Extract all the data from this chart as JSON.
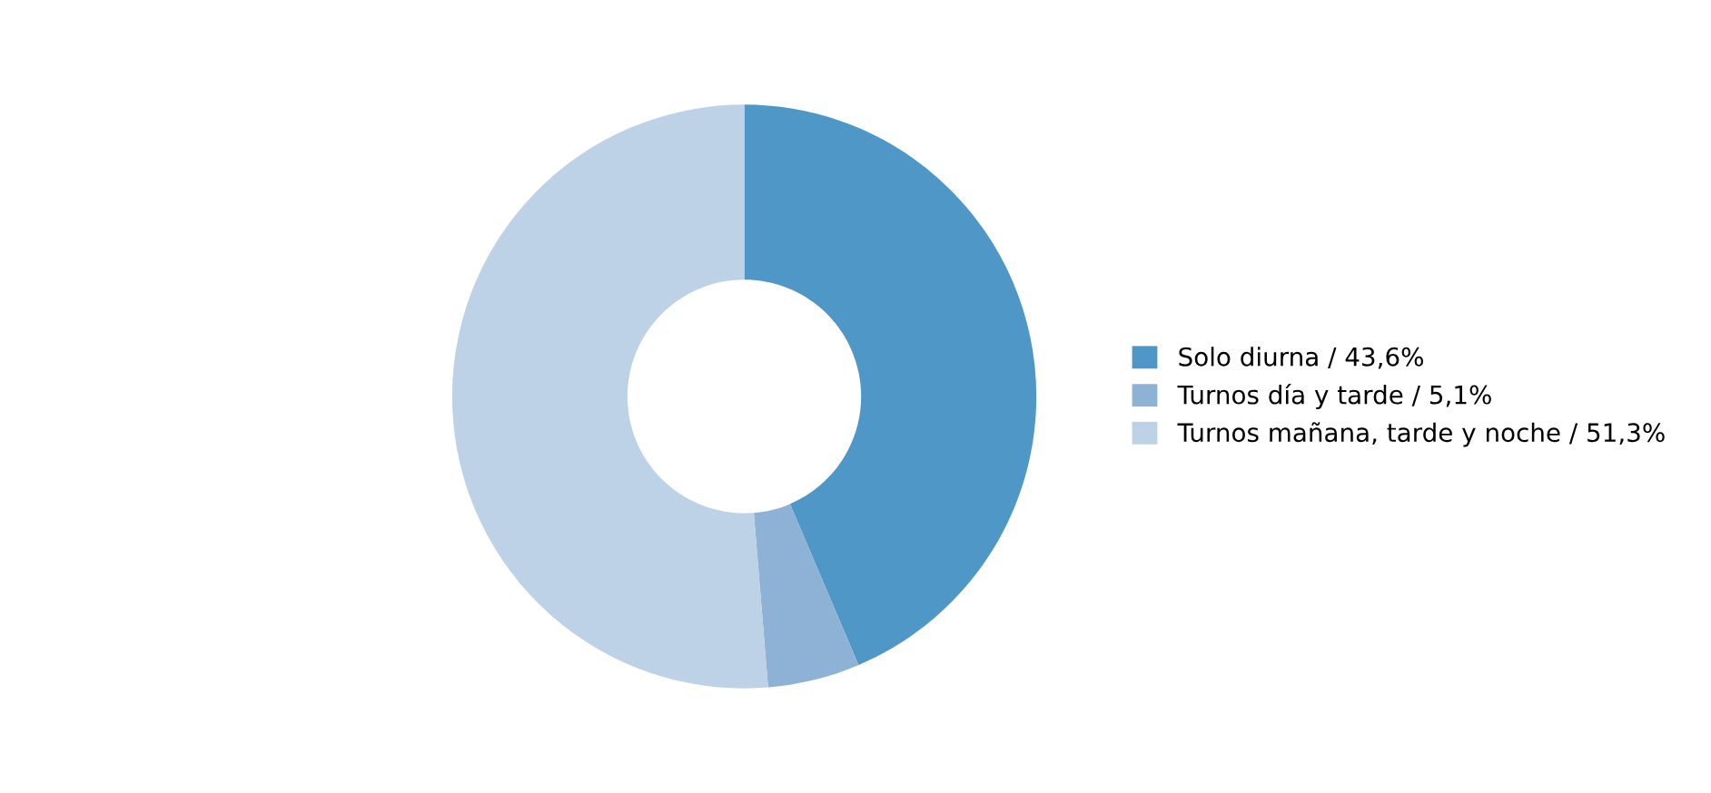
{
  "chart_data": {
    "type": "donut",
    "categories": [
      "Solo diurna / 43,6%",
      "Turnos día y tarde / 5,1%",
      "Turnos mañana, tarde y noche / 51,3%"
    ],
    "values": [
      43.6,
      5.1,
      51.3
    ],
    "colors": [
      "#4f97c7",
      "#8db2d5",
      "#bdd2e6"
    ],
    "legend": "right"
  }
}
